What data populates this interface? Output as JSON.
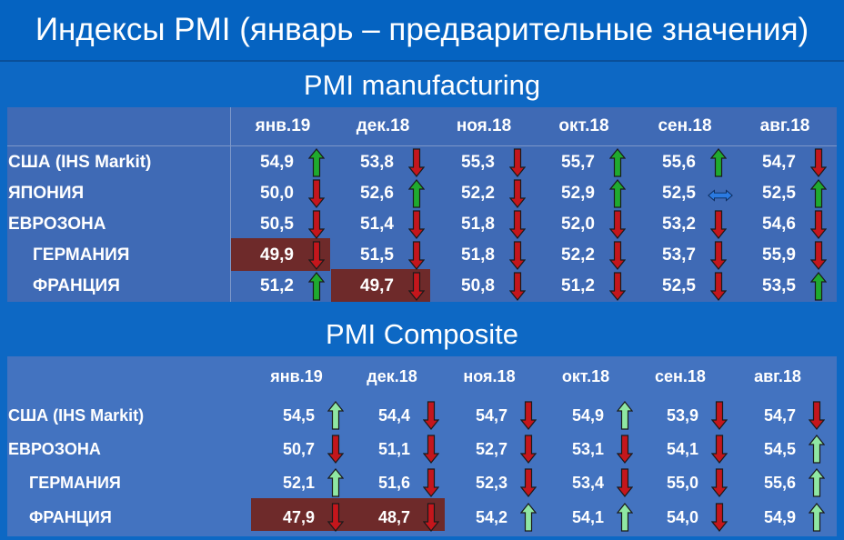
{
  "title": "Индексы PMI (январь – предварительные значения)",
  "manufacturing": {
    "title": "PMI manufacturing",
    "columns": [
      "янв.19",
      "дек.18",
      "ноя.18",
      "окт.18",
      "сен.18",
      "авг.18"
    ],
    "rows": [
      {
        "label": "США (IHS Markit)",
        "values": [
          "54,9",
          "53,8",
          "55,3",
          "55,7",
          "55,6",
          "54,7"
        ],
        "arrows": [
          "up-green",
          "down-red",
          "down-red",
          "up-green",
          "up-green",
          "down-red"
        ]
      },
      {
        "label": "ЯПОНИЯ",
        "values": [
          "50,0",
          "52,6",
          "52,2",
          "52,9",
          "52,5",
          "52,5"
        ],
        "arrows": [
          "down-red",
          "up-green",
          "down-red",
          "up-green",
          "flat-blue",
          "up-green"
        ]
      },
      {
        "label": "ЕВРОЗОНА",
        "values": [
          "50,5",
          "51,4",
          "51,8",
          "52,0",
          "53,2",
          "54,6"
        ],
        "arrows": [
          "down-red",
          "down-red",
          "down-red",
          "down-red",
          "down-red",
          "down-red"
        ]
      },
      {
        "label": "ГЕРМАНИЯ",
        "values": [
          "49,9",
          "51,5",
          "51,8",
          "52,2",
          "53,7",
          "55,9"
        ],
        "arrows": [
          "down-red",
          "down-red",
          "down-red",
          "down-red",
          "down-red",
          "down-red"
        ]
      },
      {
        "label": "ФРАНЦИЯ",
        "values": [
          "51,2",
          "49,7",
          "50,8",
          "51,2",
          "52,5",
          "53,5"
        ],
        "arrows": [
          "up-green",
          "down-red",
          "down-red",
          "down-red",
          "down-red",
          "up-green"
        ]
      }
    ]
  },
  "composite": {
    "title": "PMI Composite",
    "columns": [
      "янв.19",
      "дек.18",
      "ноя.18",
      "окт.18",
      "сен.18",
      "авг.18"
    ],
    "rows": [
      {
        "label": "США (IHS Markit)",
        "values": [
          "54,5",
          "54,4",
          "54,7",
          "54,9",
          "53,9",
          "54,7"
        ],
        "arrows": [
          "up-lightgreen",
          "down-red",
          "down-red",
          "up-lightgreen",
          "down-red",
          "down-red"
        ]
      },
      {
        "label": "ЕВРОЗОНА",
        "values": [
          "50,7",
          "51,1",
          "52,7",
          "53,1",
          "54,1",
          "54,5"
        ],
        "arrows": [
          "down-red",
          "down-red",
          "down-red",
          "down-red",
          "down-red",
          "up-lightgreen"
        ]
      },
      {
        "label": "ГЕРМАНИЯ",
        "values": [
          "52,1",
          "51,6",
          "52,3",
          "53,4",
          "55,0",
          "55,6"
        ],
        "arrows": [
          "up-lightgreen",
          "down-red",
          "down-red",
          "down-red",
          "down-red",
          "up-lightgreen"
        ]
      },
      {
        "label": "ФРАНЦИЯ",
        "values": [
          "47,9",
          "48,7",
          "54,2",
          "54,1",
          "54,0",
          "54,9"
        ],
        "arrows": [
          "down-red",
          "down-red",
          "up-lightgreen",
          "up-lightgreen",
          "down-red",
          "up-lightgreen"
        ]
      }
    ]
  },
  "colors": {
    "background": "#0d68c4",
    "panel": "#3f6ab5",
    "highlight": "#6e2a2a",
    "arrow_up": "#1faa2e",
    "arrow_up_light": "#8fe7a2",
    "arrow_down": "#c4161c",
    "arrow_flat": "#2b7ae0"
  }
}
